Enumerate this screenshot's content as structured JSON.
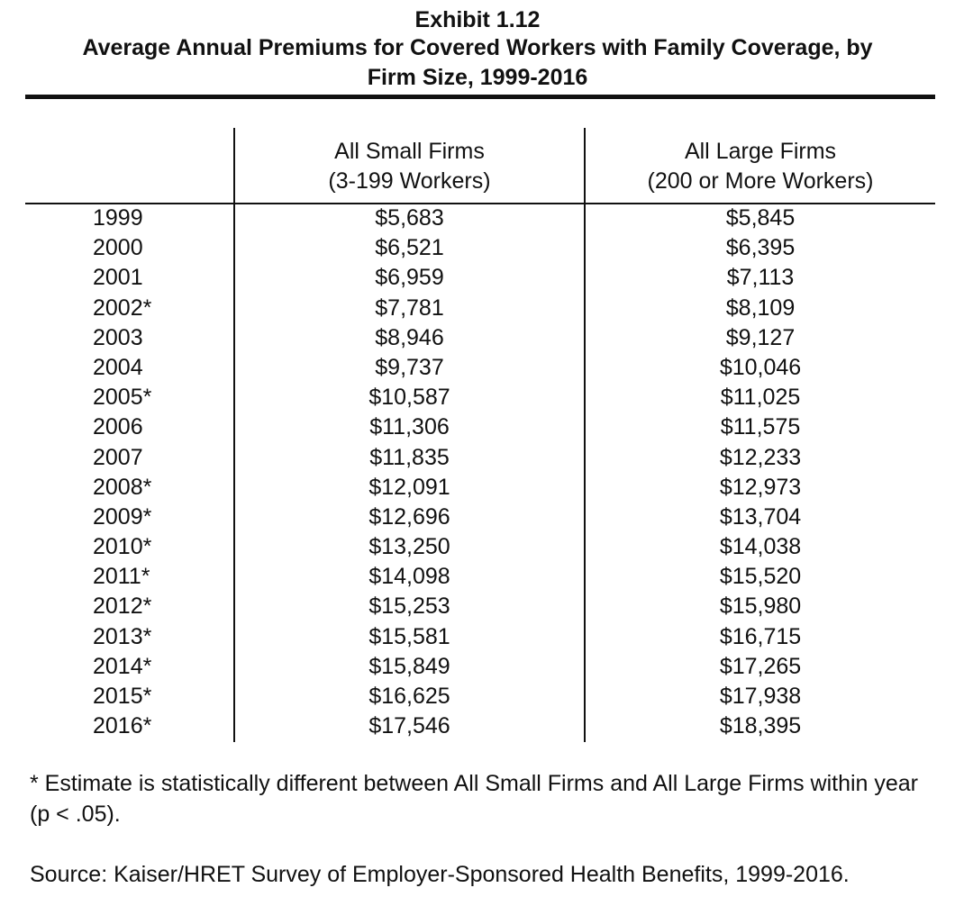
{
  "exhibit": {
    "label": "Exhibit 1.12",
    "title_line1": "Average Annual Premiums for Covered Workers with Family Coverage, by",
    "title_line2": "Firm Size, 1999-2016"
  },
  "table": {
    "columns": [
      {
        "line1": "All Small Firms",
        "line2": "(3-199 Workers)"
      },
      {
        "line1": "All Large Firms",
        "line2": "(200 or More Workers)"
      }
    ],
    "rows": [
      {
        "year": "1999",
        "small": "$5,683",
        "large": "$5,845"
      },
      {
        "year": "2000",
        "small": "$6,521",
        "large": "$6,395"
      },
      {
        "year": "2001",
        "small": "$6,959",
        "large": "$7,113"
      },
      {
        "year": "2002*",
        "small": "$7,781",
        "large": "$8,109"
      },
      {
        "year": "2003",
        "small": "$8,946",
        "large": "$9,127"
      },
      {
        "year": "2004",
        "small": "$9,737",
        "large": "$10,046"
      },
      {
        "year": "2005*",
        "small": "$10,587",
        "large": "$11,025"
      },
      {
        "year": "2006",
        "small": "$11,306",
        "large": "$11,575"
      },
      {
        "year": "2007",
        "small": "$11,835",
        "large": "$12,233"
      },
      {
        "year": "2008*",
        "small": "$12,091",
        "large": "$12,973"
      },
      {
        "year": "2009*",
        "small": "$12,696",
        "large": "$13,704"
      },
      {
        "year": "2010*",
        "small": "$13,250",
        "large": "$14,038"
      },
      {
        "year": "2011*",
        "small": "$14,098",
        "large": "$15,520"
      },
      {
        "year": "2012*",
        "small": "$15,253",
        "large": "$15,980"
      },
      {
        "year": "2013*",
        "small": "$15,581",
        "large": "$16,715"
      },
      {
        "year": "2014*",
        "small": "$15,849",
        "large": "$17,265"
      },
      {
        "year": "2015*",
        "small": "$16,625",
        "large": "$17,938"
      },
      {
        "year": "2016*",
        "small": "$17,546",
        "large": "$18,395"
      }
    ]
  },
  "notes": {
    "footnote": "* Estimate is statistically different between All Small Firms and All Large Firms within year (p < .05).",
    "source": "Source: Kaiser/HRET Survey of Employer-Sponsored Health Benefits, 1999-2016."
  }
}
